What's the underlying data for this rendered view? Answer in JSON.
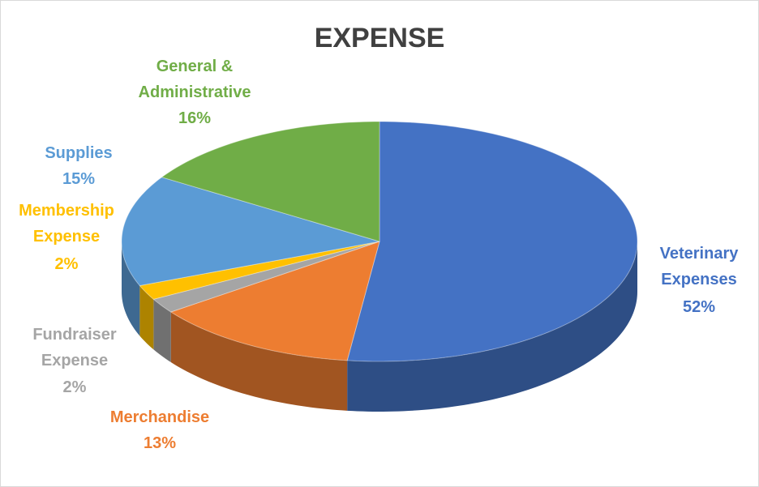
{
  "chart_data": {
    "type": "pie",
    "title": "EXPENSE",
    "categories": [
      "Veterinary Expenses",
      "Merchandise",
      "Fundraiser Expense",
      "Membership Expense",
      "Supplies",
      "General & Administrative"
    ],
    "values": [
      52,
      13,
      2,
      2,
      15,
      16
    ],
    "value_labels": [
      "52%",
      "13%",
      "2%",
      "2%",
      "15%",
      "16%"
    ],
    "colors": [
      "#4472c4",
      "#ed7d31",
      "#a5a5a5",
      "#ffc000",
      "#5b9bd5",
      "#70ad47"
    ]
  }
}
